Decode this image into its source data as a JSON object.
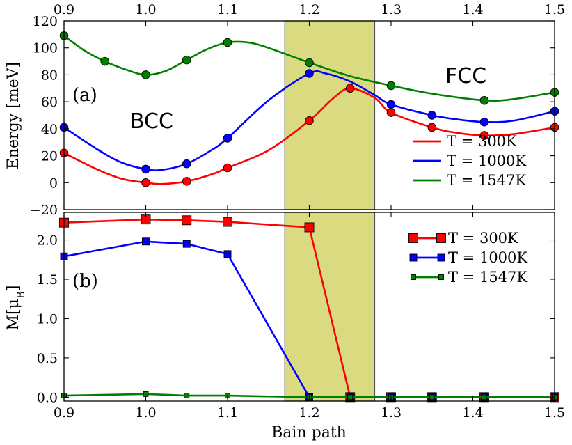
{
  "chart_data": [
    {
      "type": "line",
      "panel_label": "(a)",
      "ylabel": "Energy [meV]",
      "xlim": [
        0.9,
        1.5
      ],
      "ylim": [
        -20,
        120
      ],
      "yticks": [
        "−20",
        "0",
        "20",
        "40",
        "60",
        "80",
        "100",
        "120"
      ],
      "ytick_values": [
        -20,
        0,
        20,
        40,
        60,
        80,
        100,
        120
      ],
      "xticks": [
        "0.9",
        "1.0",
        "1.1",
        "1.2",
        "1.3",
        "1.4",
        "1.5"
      ],
      "xtick_values": [
        0.9,
        1.0,
        1.1,
        1.2,
        1.3,
        1.4,
        1.5
      ],
      "grid": false,
      "legend_position": "center-right",
      "annotations": [
        "BCC",
        "FCC"
      ],
      "shaded_region": [
        1.17,
        1.28
      ],
      "series": [
        {
          "name": "T = 300K",
          "color": "#ff0000",
          "x": [
            0.9,
            1.0,
            1.05,
            1.1,
            1.2,
            1.25,
            1.3,
            1.35,
            1.414,
            1.5
          ],
          "y": [
            22,
            0,
            1,
            11,
            46,
            70,
            52,
            41,
            35,
            41
          ],
          "curve_x": [
            0.9,
            0.94,
            0.97,
            1.0,
            1.02,
            1.05,
            1.08,
            1.1,
            1.15,
            1.2,
            1.23,
            1.25,
            1.28,
            1.3,
            1.35,
            1.38,
            1.414,
            1.45,
            1.5
          ],
          "curve_y": [
            22,
            10,
            3,
            0,
            -1,
            1,
            6,
            11,
            24,
            46,
            63,
            70,
            63,
            52,
            41,
            37,
            35,
            36,
            41
          ]
        },
        {
          "name": "T = 1000K",
          "color": "#0000ff",
          "x": [
            0.9,
            1.0,
            1.05,
            1.1,
            1.2,
            1.3,
            1.35,
            1.414,
            1.5
          ],
          "y": [
            41,
            10,
            14,
            33,
            81,
            58,
            50,
            45,
            53
          ],
          "curve_x": [
            0.9,
            0.94,
            0.97,
            1.0,
            1.02,
            1.05,
            1.08,
            1.1,
            1.15,
            1.2,
            1.22,
            1.25,
            1.28,
            1.3,
            1.35,
            1.38,
            1.414,
            1.45,
            1.5
          ],
          "curve_y": [
            41,
            25,
            15,
            10,
            9.5,
            14,
            24,
            33,
            61,
            81,
            81,
            75,
            65,
            58,
            50,
            47,
            45,
            46,
            53
          ]
        },
        {
          "name": "T = 1547K",
          "color": "#008000",
          "x": [
            0.9,
            0.95,
            1.0,
            1.05,
            1.1,
            1.2,
            1.3,
            1.414,
            1.5
          ],
          "y": [
            109,
            90,
            80,
            91,
            104,
            89,
            72,
            61,
            67
          ],
          "curve_x": [
            0.9,
            0.925,
            0.95,
            0.975,
            1.0,
            1.025,
            1.05,
            1.075,
            1.1,
            1.125,
            1.15,
            1.2,
            1.25,
            1.3,
            1.35,
            1.414,
            1.45,
            1.5
          ],
          "curve_y": [
            109,
            98,
            90,
            84,
            80,
            83,
            91,
            99,
            104,
            104,
            100,
            89,
            79,
            72,
            66,
            61,
            62,
            67
          ]
        }
      ]
    },
    {
      "type": "line",
      "panel_label": "(b)",
      "ylabel": "M[μ",
      "ylabel_sub": "B",
      "ylabel_end": "]",
      "xlabel": "Bain path",
      "xlim": [
        0.9,
        1.5
      ],
      "ylim": [
        -0.05,
        2.35
      ],
      "yticks": [
        "0.0",
        "0.5",
        "1.0",
        "1.5",
        "2.0"
      ],
      "ytick_values": [
        0,
        0.5,
        1.0,
        1.5,
        2.0
      ],
      "xticks": [
        "0.9",
        "1.0",
        "1.1",
        "1.2",
        "1.3",
        "1.4",
        "1.5"
      ],
      "xtick_values": [
        0.9,
        1.0,
        1.1,
        1.2,
        1.3,
        1.4,
        1.5
      ],
      "grid": false,
      "legend_position": "top-right",
      "shaded_region": [
        1.17,
        1.28
      ],
      "series": [
        {
          "name": "T = 300K",
          "color": "#ff0000",
          "marker_size": 13,
          "x": [
            0.9,
            1.0,
            1.05,
            1.1,
            1.2,
            1.25,
            1.3,
            1.35,
            1.414,
            1.5
          ],
          "y": [
            2.22,
            2.26,
            2.25,
            2.23,
            2.16,
            0.0,
            0.0,
            0.0,
            0.0,
            0.0
          ]
        },
        {
          "name": "T = 1000K",
          "color": "#0000ff",
          "marker_size": 10,
          "x": [
            0.9,
            1.0,
            1.05,
            1.1,
            1.2,
            1.25,
            1.3,
            1.35,
            1.414,
            1.5
          ],
          "y": [
            1.79,
            1.98,
            1.95,
            1.82,
            0.0,
            0.0,
            0.0,
            0.0,
            0.0,
            0.0
          ]
        },
        {
          "name": "T = 1547K",
          "color": "#008000",
          "marker_size": 7,
          "x": [
            0.9,
            1.0,
            1.05,
            1.1,
            1.2,
            1.25,
            1.3,
            1.35,
            1.414,
            1.5
          ],
          "y": [
            0.02,
            0.04,
            0.02,
            0.02,
            0.0,
            0.0,
            0.0,
            0.0,
            0.0,
            0.0
          ]
        }
      ]
    }
  ]
}
